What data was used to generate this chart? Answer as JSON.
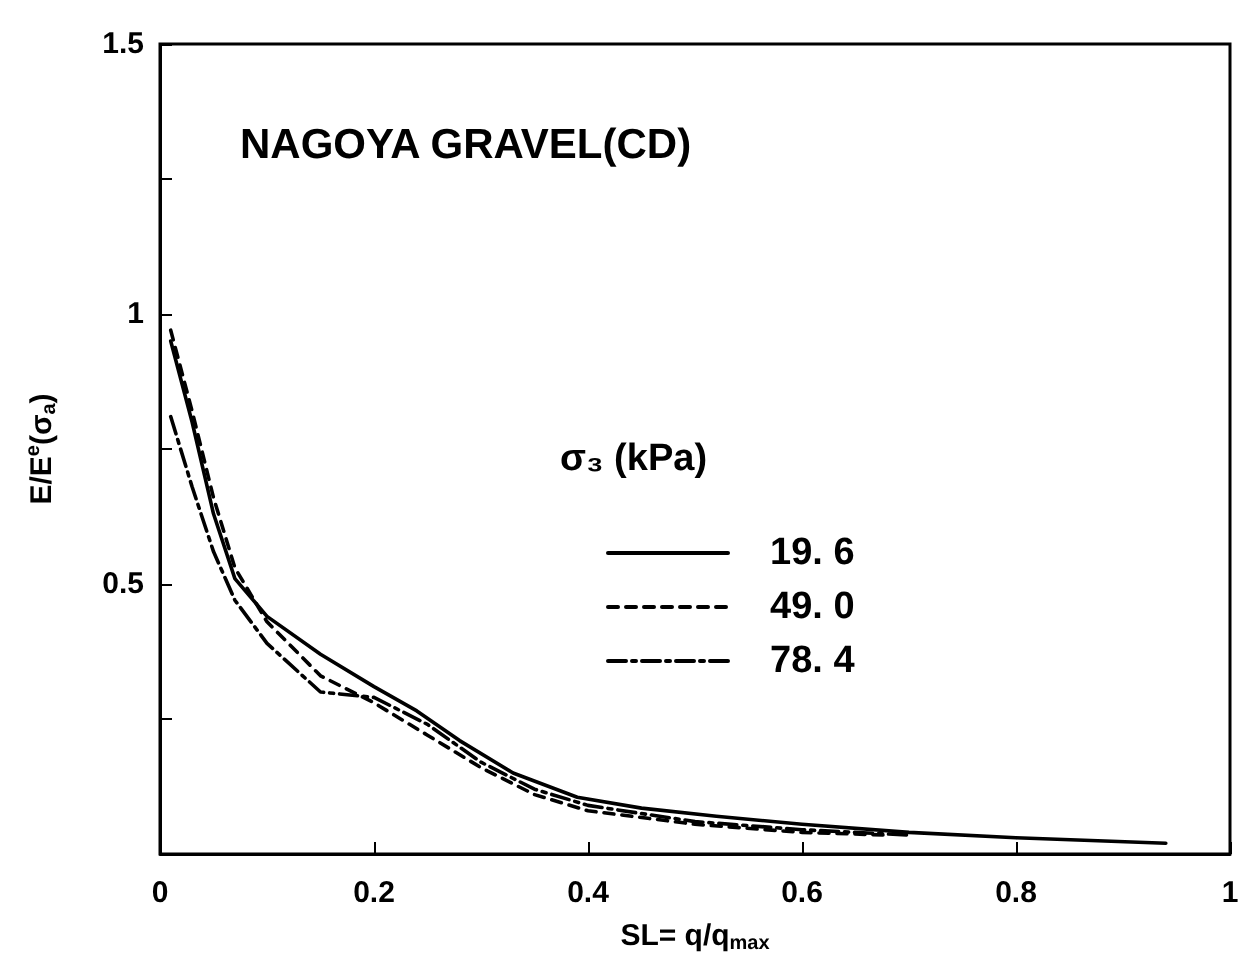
{
  "chart_data": {
    "type": "line",
    "title": "NAGOYA GRAVEL(CD)",
    "xlabel": "SL= q/q$_{max}$",
    "ylabel": "E/E$^{e}$(σ$_{a}$)",
    "legend_title": "σ₃ (kPa)",
    "xlim": [
      0,
      1
    ],
    "xticks": [
      0,
      0.2,
      0.4,
      0.6,
      0.8,
      1
    ],
    "ylim": [
      0,
      1.5
    ],
    "yticks": [
      {
        "value": 0,
        "label": null
      },
      {
        "value": 0.25,
        "label": null
      },
      0.5,
      {
        "value": 0.75,
        "label": null
      },
      1,
      {
        "value": 1.25,
        "label": null
      },
      1.5
    ],
    "grid": false,
    "legend": "right",
    "marker": "none",
    "series": [
      {
        "name": "19. 6",
        "color": "#000000",
        "line_style": "solid",
        "x": [
          0.01,
          0.03,
          0.05,
          0.07,
          0.1,
          0.15,
          0.2,
          0.24,
          0.28,
          0.33,
          0.39,
          0.45,
          0.52,
          0.6,
          0.7,
          0.8,
          0.94
        ],
        "values": [
          0.95,
          0.8,
          0.63,
          0.51,
          0.44,
          0.37,
          0.31,
          0.265,
          0.21,
          0.15,
          0.105,
          0.085,
          0.07,
          0.055,
          0.04,
          0.03,
          0.02
        ]
      },
      {
        "name": "49. 0",
        "color": "#000000",
        "line_style": "dashed",
        "x": [
          0.01,
          0.03,
          0.05,
          0.07,
          0.1,
          0.15,
          0.2,
          0.25,
          0.3,
          0.35,
          0.4,
          0.5,
          0.6,
          0.68
        ],
        "values": [
          0.97,
          0.82,
          0.66,
          0.53,
          0.43,
          0.33,
          0.28,
          0.22,
          0.16,
          0.11,
          0.08,
          0.055,
          0.04,
          0.035
        ]
      },
      {
        "name": "78. 4",
        "color": "#000000",
        "line_style": "dashdot",
        "x": [
          0.01,
          0.03,
          0.05,
          0.07,
          0.1,
          0.15,
          0.2,
          0.25,
          0.3,
          0.35,
          0.4,
          0.5,
          0.6,
          0.7
        ],
        "values": [
          0.81,
          0.68,
          0.56,
          0.47,
          0.39,
          0.3,
          0.29,
          0.24,
          0.17,
          0.12,
          0.09,
          0.06,
          0.045,
          0.035
        ]
      }
    ]
  }
}
